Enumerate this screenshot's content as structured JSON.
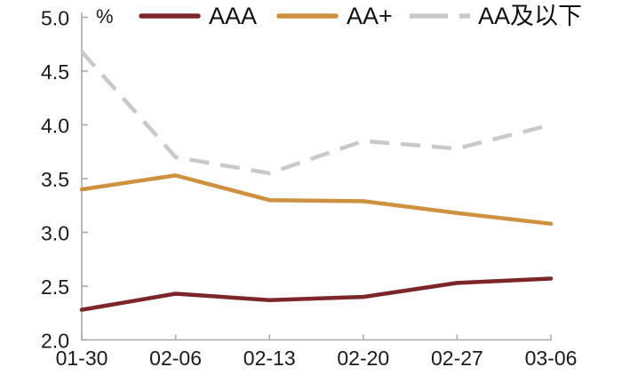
{
  "chart_data": {
    "type": "line",
    "title": "",
    "unit_label": "%",
    "categories": [
      "01-30",
      "02-06",
      "02-13",
      "02-20",
      "02-27",
      "03-06"
    ],
    "series": [
      {
        "name": "AAA",
        "color": "#7d262a",
        "dashed": false,
        "values": [
          2.28,
          2.43,
          2.37,
          2.4,
          2.53,
          2.57
        ]
      },
      {
        "name": "AA+",
        "color": "#ce9140",
        "dashed": false,
        "values": [
          3.4,
          3.53,
          3.3,
          3.29,
          3.18,
          3.08
        ]
      },
      {
        "name": "AA及以下",
        "color": "#c9c9c9",
        "dashed": true,
        "values": [
          4.68,
          3.7,
          3.55,
          3.85,
          3.78,
          4.0
        ]
      }
    ],
    "xlabel": "",
    "ylabel": "%",
    "ylim": [
      2.0,
      5.0
    ],
    "y_tick_labels": [
      "5.0",
      "4.5",
      "4.0",
      "3.5",
      "3.0",
      "2.5",
      "2.0"
    ],
    "y_tick_values": [
      5.0,
      4.5,
      4.0,
      3.5,
      3.0,
      2.5,
      2.0
    ],
    "grid": false,
    "legend_position": "top"
  },
  "style": {
    "axis_color": "#a9a9a9",
    "text_color": "#1a1a1a",
    "line_width": 4.5,
    "dash_pattern": "22 13"
  }
}
